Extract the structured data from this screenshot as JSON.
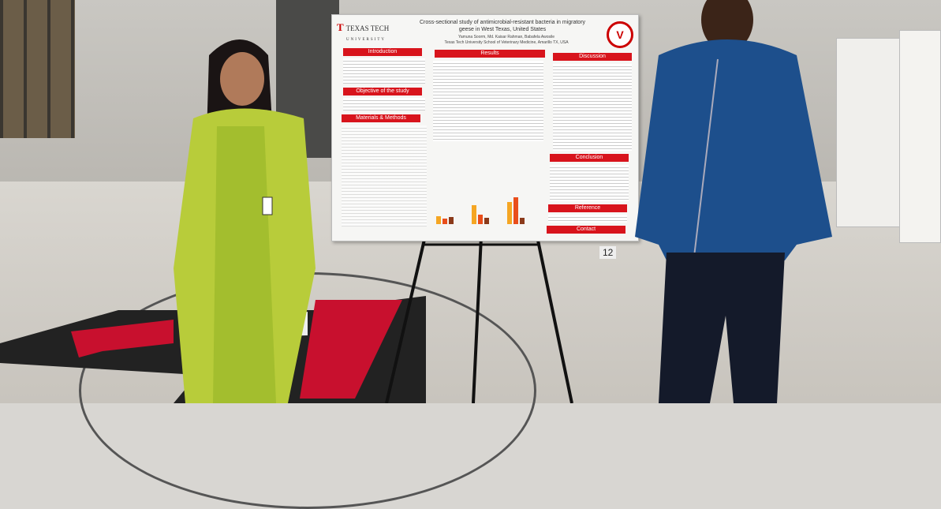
{
  "poster": {
    "institution": "TEXAS TECH",
    "institution_sub": "UNIVERSITY",
    "title_line1": "Cross-sectional study of antimicrobial-resistant bacteria in migratory",
    "title_line2": "geese in West Texas, United States",
    "authors": "Yamuna Soorm, Md. Kaisar Rahman, Babafela Awosile",
    "affiliation": "Texas Tech University School of Veterinary Medicine, Amarillo TX, USA",
    "sections": {
      "introduction": "Introduction",
      "objective": "Objective of the study",
      "methods": "Materials & Methods",
      "results": "Results",
      "discussion": "Discussion",
      "conclusion": "Conclusion",
      "reference": "Reference",
      "contact": "Contact"
    },
    "colors": {
      "accent": "#d8141c"
    }
  },
  "board_number": "12"
}
